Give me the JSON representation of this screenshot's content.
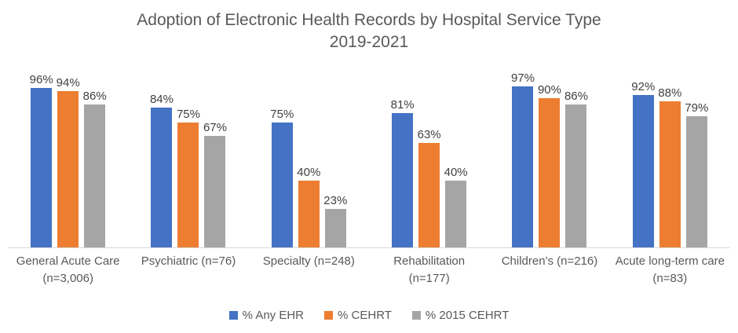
{
  "chart": {
    "title_line1": "Adoption of Electronic Health Records by Hospital Service Type",
    "title_line2": "2019-2021"
  },
  "chart_data": {
    "type": "bar",
    "title": "Adoption of Electronic Health Records by Hospital Service Type 2019-2021",
    "categories": [
      "General Acute Care (n=3,006)",
      "Psychiatric (n=76)",
      "Specialty (n=248)",
      "Rehabilitation (n=177)",
      "Children's (n=216)",
      "Acute long-term care (n=83)"
    ],
    "series": [
      {
        "name": "% Any EHR",
        "color": "#4472C4",
        "values": [
          96,
          84,
          75,
          81,
          97,
          92
        ]
      },
      {
        "name": "% CEHRT",
        "color": "#ED7D31",
        "values": [
          94,
          75,
          40,
          63,
          90,
          88
        ]
      },
      {
        "name": "% 2015 CEHRT",
        "color": "#A5A5A5",
        "values": [
          86,
          67,
          23,
          40,
          86,
          79
        ]
      }
    ],
    "value_suffix": "%",
    "ylim": [
      0,
      100
    ],
    "grid": false,
    "y_axis_visible": false,
    "data_labels": true,
    "legend_position": "bottom"
  },
  "colors": {
    "axis_line": "#D9D9D9",
    "title_text": "#595959",
    "data_label_text": "#404040",
    "category_text": "#595959",
    "background": "#FFFFFF"
  }
}
